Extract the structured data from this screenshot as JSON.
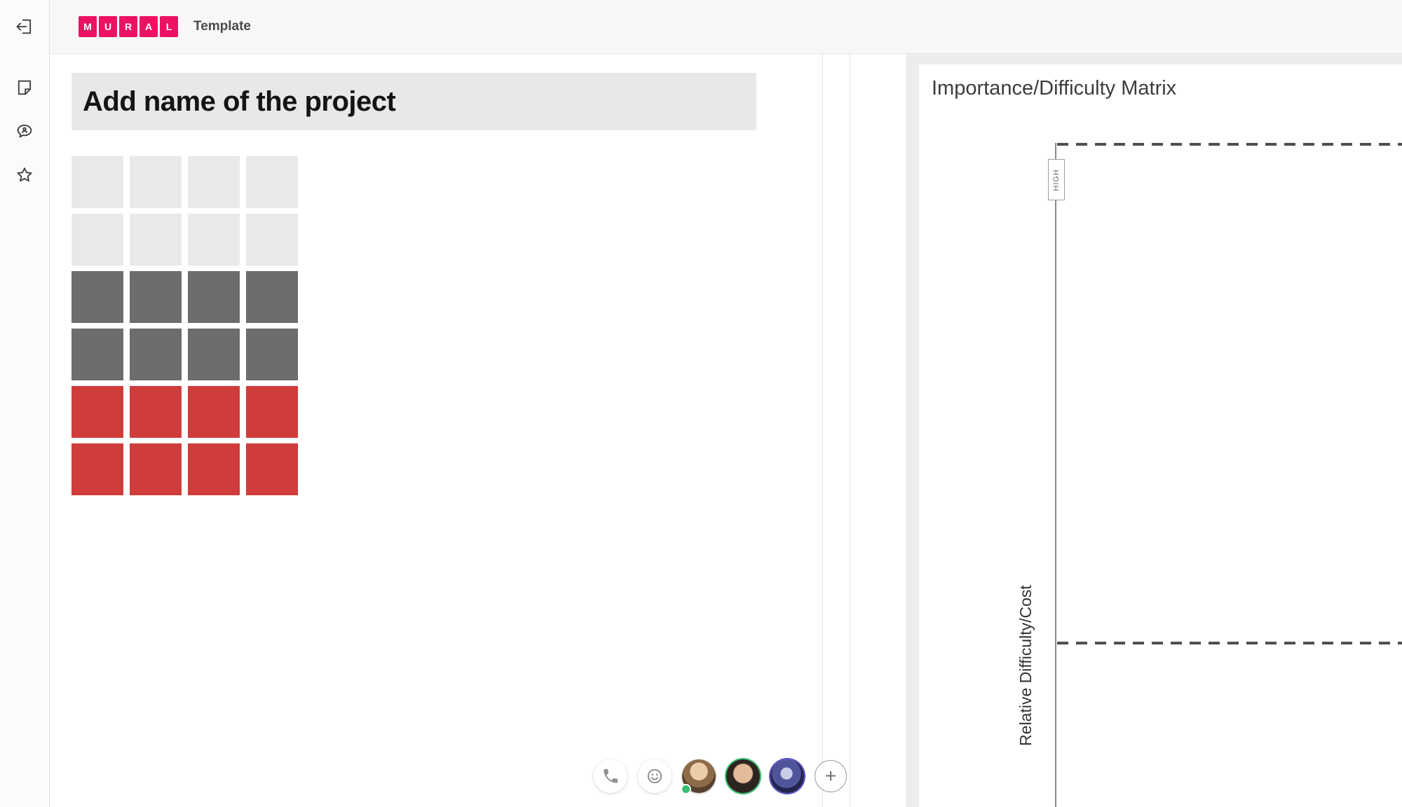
{
  "topbar": {
    "logo_letters": [
      "M",
      "U",
      "R",
      "A",
      "L"
    ],
    "title": "Template"
  },
  "sidebar": {
    "icons": [
      {
        "name": "exit"
      },
      {
        "name": "sticky-note"
      },
      {
        "name": "comments"
      },
      {
        "name": "star"
      }
    ]
  },
  "left_mural": {
    "project_title": "Add name of the project",
    "grid": {
      "columns": 4,
      "rows": 6,
      "row_colors": [
        "#E9E9E9",
        "#E9E9E9",
        "#6D6D6D",
        "#6D6D6D",
        "#D03C3C",
        "#D03C3C"
      ]
    }
  },
  "right_mural": {
    "title": "Importance/Difficulty Matrix",
    "axis_top_label": "HIGH",
    "y_axis_label": "Relative Difficulty/Cost"
  },
  "presence": {
    "tools": [
      {
        "name": "voice-call"
      },
      {
        "name": "reactions"
      }
    ],
    "avatars": [
      {
        "id": "av1",
        "ring": "",
        "badge": "#35C06F"
      },
      {
        "id": "av2",
        "ring": "#35C06F",
        "badge": ""
      },
      {
        "id": "av3",
        "ring": "#5B50C8",
        "badge": ""
      }
    ],
    "add_label": "+"
  },
  "colors": {
    "brand": "#ED1164",
    "dash": "#4F4F4F",
    "axis": "#8A8A8A"
  }
}
